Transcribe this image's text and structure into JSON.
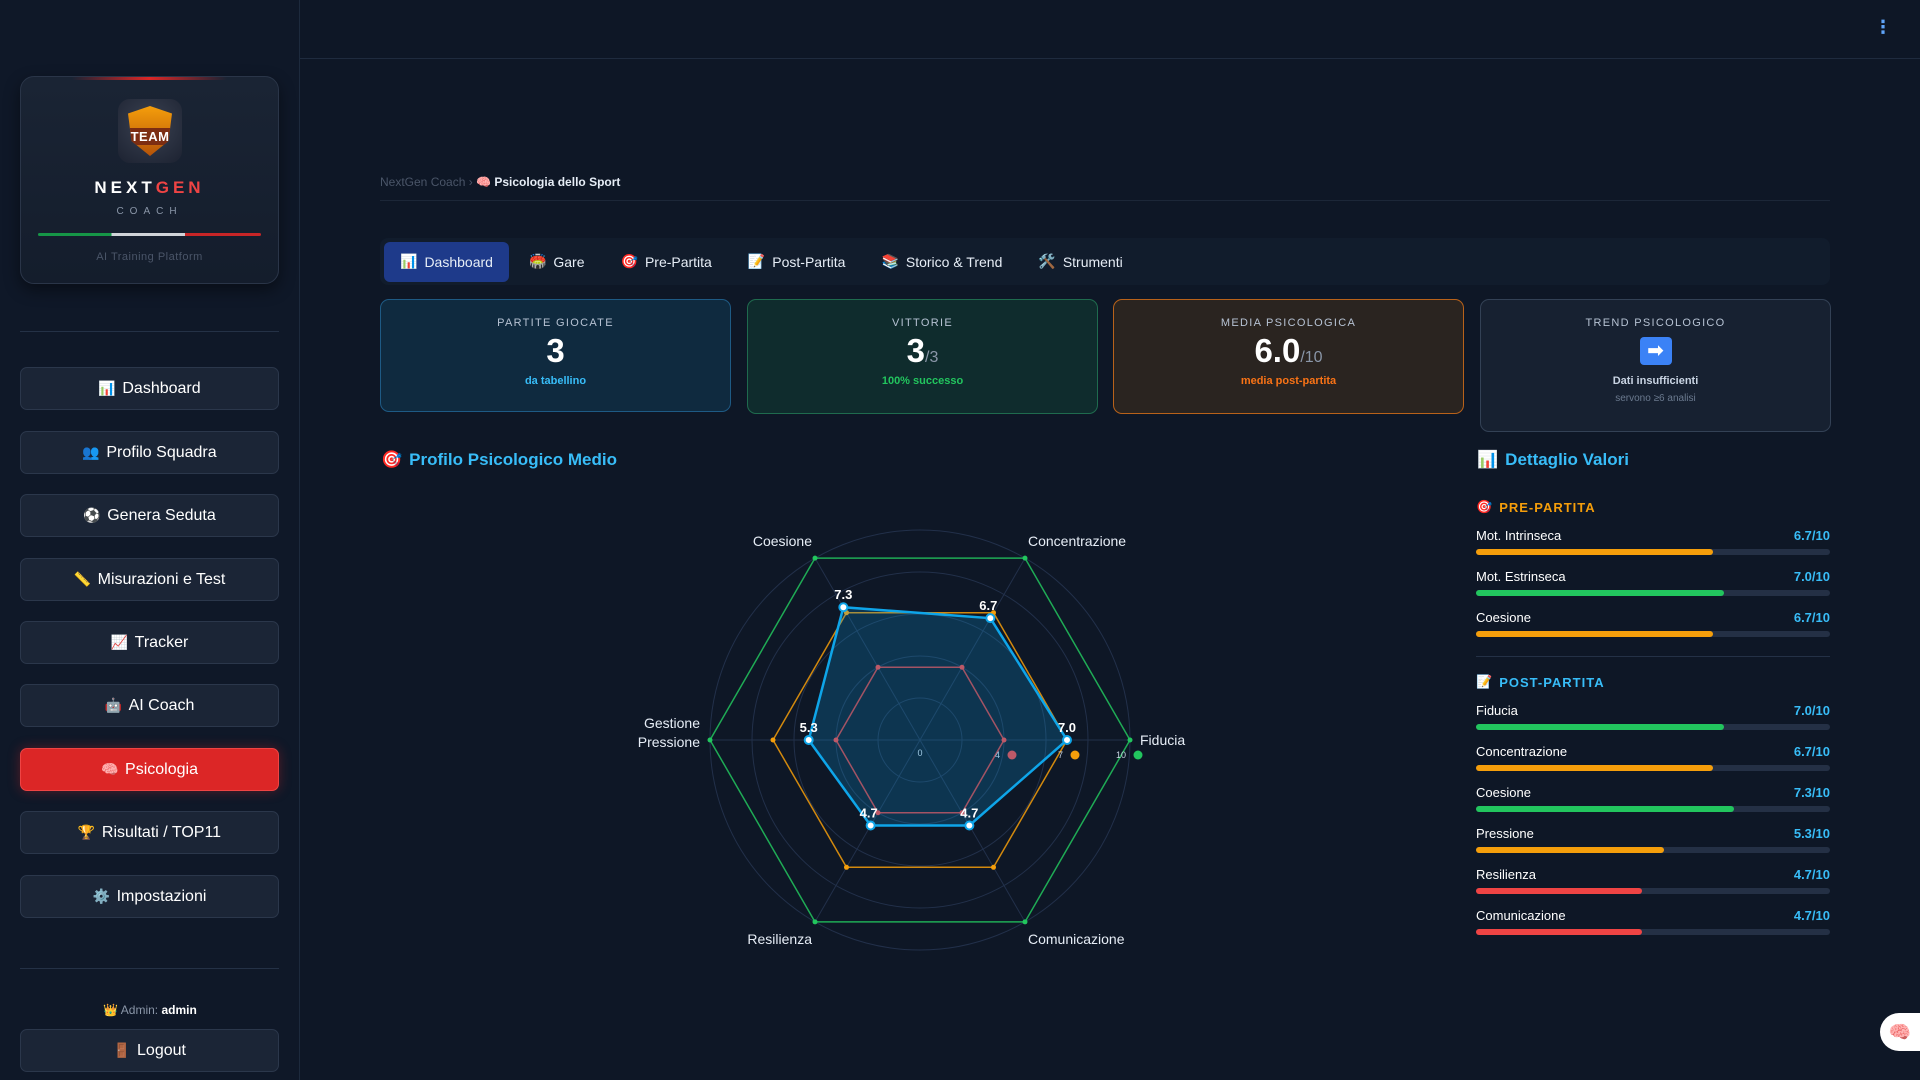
{
  "brand": {
    "name_a": "NEXT",
    "name_b": "GEN",
    "sub": "COACH",
    "tag": "AI Training Platform",
    "logo_text": "TEAM"
  },
  "sidebar": {
    "items": [
      {
        "icon": "📊",
        "label": "Dashboard"
      },
      {
        "icon": "👥",
        "label": "Profilo Squadra"
      },
      {
        "icon": "⚽",
        "label": "Genera Seduta"
      },
      {
        "icon": "📏",
        "label": "Misurazioni e Test"
      },
      {
        "icon": "📈",
        "label": "Tracker"
      },
      {
        "icon": "🤖",
        "label": "AI Coach"
      },
      {
        "icon": "🧠",
        "label": "Psicologia"
      },
      {
        "icon": "🏆",
        "label": "Risultati / TOP11"
      },
      {
        "icon": "⚙️",
        "label": "Impostazioni"
      }
    ],
    "admin_prefix": "Admin:",
    "admin_name": "admin",
    "admin_icon": "👑",
    "logout_icon": "🚪",
    "logout_label": "Logout"
  },
  "topbar": {
    "menu_icon": "⋮"
  },
  "breadcrumb": {
    "root": "NextGen Coach",
    "sep": "›",
    "icon": "🧠",
    "current": "Psicologia dello Sport"
  },
  "tabs": [
    {
      "icon": "📊",
      "label": "Dashboard"
    },
    {
      "icon": "🏟️",
      "label": "Gare"
    },
    {
      "icon": "🎯",
      "label": "Pre-Partita"
    },
    {
      "icon": "📝",
      "label": "Post-Partita"
    },
    {
      "icon": "📚",
      "label": "Storico & Trend"
    },
    {
      "icon": "🛠️",
      "label": "Strumenti"
    }
  ],
  "stats": {
    "played": {
      "label": "PARTITE GIOCATE",
      "value": "3",
      "foot": "da tabellino"
    },
    "wins": {
      "label": "VITTORIE",
      "value": "3",
      "total": "/3",
      "foot": "100% successo"
    },
    "avg": {
      "label": "MEDIA PSICOLOGICA",
      "value": "6.0",
      "scale": "/10",
      "foot": "media post-partita"
    },
    "trend": {
      "label": "TREND PSICOLOGICO",
      "icon": "➡",
      "foot": "Dati insufficienti",
      "foot2": "servono ≥6 analisi"
    }
  },
  "profile": {
    "icon": "🎯",
    "title": "Profilo Psicologico Medio"
  },
  "detail": {
    "icon": "📊",
    "title": "Dettaglio Valori",
    "pre": {
      "icon": "🎯",
      "title": "PRE-PARTITA",
      "rows": [
        {
          "name": "Mot. Intrinseca",
          "value": 6.7,
          "text": "6.7/10",
          "color": "#f59e0b"
        },
        {
          "name": "Mot. Estrinseca",
          "value": 7.0,
          "text": "7.0/10",
          "color": "#22c55e"
        },
        {
          "name": "Coesione",
          "value": 6.7,
          "text": "6.7/10",
          "color": "#f59e0b"
        }
      ]
    },
    "post": {
      "icon": "📝",
      "title": "POST-PARTITA",
      "rows": [
        {
          "name": "Fiducia",
          "value": 7.0,
          "text": "7.0/10",
          "color": "#22c55e"
        },
        {
          "name": "Concentrazione",
          "value": 6.7,
          "text": "6.7/10",
          "color": "#f59e0b"
        },
        {
          "name": "Coesione",
          "value": 7.3,
          "text": "7.3/10",
          "color": "#22c55e"
        },
        {
          "name": "Pressione",
          "value": 5.3,
          "text": "5.3/10",
          "color": "#f59e0b"
        },
        {
          "name": "Resilienza",
          "value": 4.7,
          "text": "4.7/10",
          "color": "#ef4444"
        },
        {
          "name": "Comunicazione",
          "value": 4.7,
          "text": "4.7/10",
          "color": "#ef4444"
        }
      ]
    }
  },
  "chart_data": {
    "type": "radar",
    "axes": [
      "Fiducia",
      "Concentrazione",
      "Coesione",
      "Gestione Pressione",
      "Resilienza",
      "Comunicazione"
    ],
    "range": [
      0,
      10
    ],
    "series": [
      {
        "values": [
          7.0,
          6.7,
          7.3,
          5.3,
          4.7,
          4.7
        ],
        "color": "#0ea5e9"
      }
    ],
    "reference_rings": [
      {
        "value": 10,
        "color": "#22c55e",
        "label": "10"
      },
      {
        "value": 7,
        "color": "#f59e0b",
        "label": "7"
      },
      {
        "value": 4,
        "color": "#ef4444",
        "label": "4"
      }
    ],
    "center_label": "0",
    "value_labels": [
      "7.0",
      "6.7",
      "7.3",
      "5.3",
      "4.7",
      "4.7"
    ]
  },
  "fab": {
    "icon": "🧠"
  }
}
